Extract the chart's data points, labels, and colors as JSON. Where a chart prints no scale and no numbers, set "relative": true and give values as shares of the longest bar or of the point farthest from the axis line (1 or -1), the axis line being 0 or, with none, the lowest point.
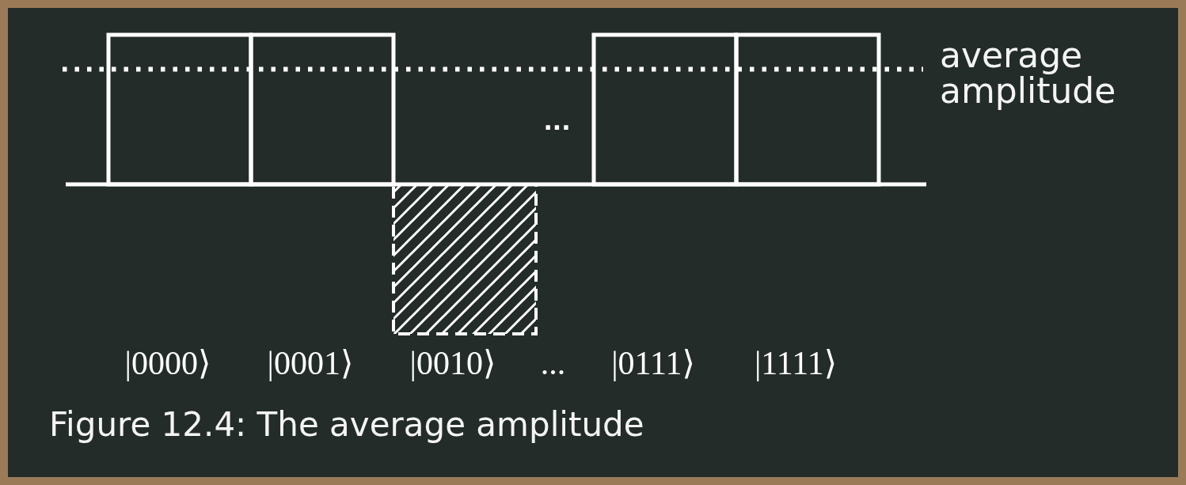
{
  "chart_data": {
    "type": "bar",
    "title": "Figure 12.4: The average amplitude",
    "categories": [
      "|0000⟩",
      "|0001⟩",
      "|0010⟩",
      "...",
      "|0111⟩",
      "|1111⟩"
    ],
    "values": [
      1,
      1,
      -1,
      null,
      1,
      1
    ],
    "color": "#ffffff",
    "relative": true,
    "ref_lines": [
      {
        "axis": "y",
        "value": 0.77,
        "label": "average amplitude",
        "line_style": "dotted",
        "color": "#ffffff"
      }
    ],
    "annotations": [
      "..."
    ]
  }
}
